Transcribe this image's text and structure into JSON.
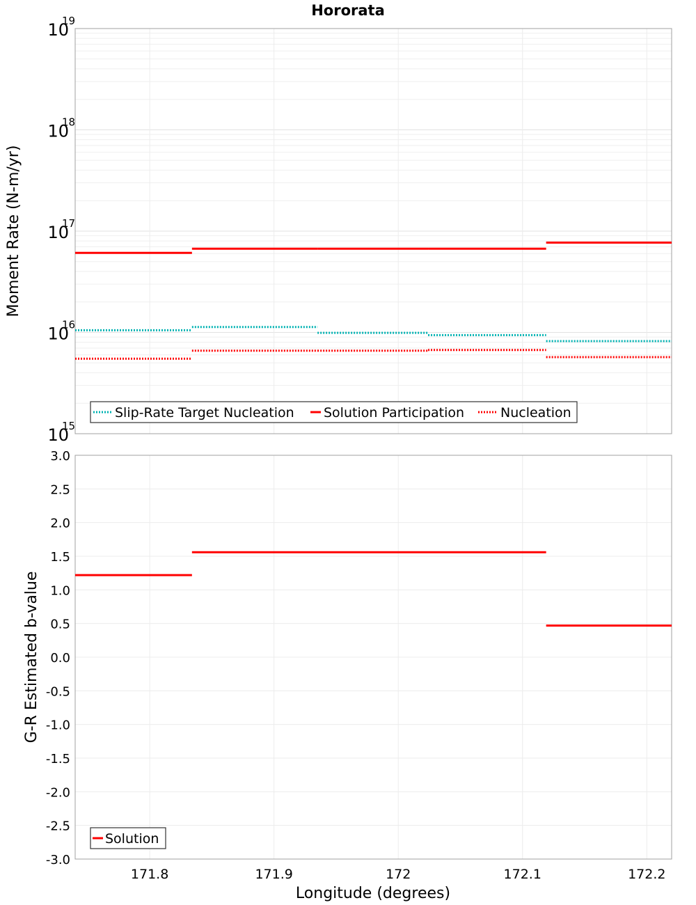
{
  "chart_data": [
    {
      "type": "line",
      "title": "Hororata",
      "xlabel": "",
      "ylabel": "Moment Rate (N-m/yr)",
      "yscale": "log",
      "xlim": [
        171.74,
        172.22
      ],
      "ylim": [
        1000000000000000.0,
        1e+19
      ],
      "y_ticks": [
        {
          "base": "10",
          "exp": "15",
          "value": 1000000000000000.0
        },
        {
          "base": "10",
          "exp": "16",
          "value": 1e+16
        },
        {
          "base": "10",
          "exp": "17",
          "value": 1e+17
        },
        {
          "base": "10",
          "exp": "18",
          "value": 1e+18
        },
        {
          "base": "10",
          "exp": "19",
          "value": 1e+19
        }
      ],
      "legend_position": "bottom-left",
      "series": [
        {
          "name": "Slip-Rate Target Nucleation",
          "color": "#00b2b2",
          "style": "dotted",
          "segments": [
            {
              "x0": 171.74,
              "x1": 171.834,
              "y": 1.05e+16
            },
            {
              "x0": 171.834,
              "x1": 171.935,
              "y": 1.13e+16
            },
            {
              "x0": 171.935,
              "x1": 172.024,
              "y": 9900000000000000.0
            },
            {
              "x0": 172.024,
              "x1": 172.119,
              "y": 9400000000000000.0
            },
            {
              "x0": 172.119,
              "x1": 172.22,
              "y": 8200000000000000.0
            }
          ]
        },
        {
          "name": "Solution Participation",
          "color": "#ff0000",
          "style": "solid",
          "segments": [
            {
              "x0": 171.74,
              "x1": 171.834,
              "y": 6.1e+16
            },
            {
              "x0": 171.834,
              "x1": 171.935,
              "y": 6.7e+16
            },
            {
              "x0": 171.935,
              "x1": 172.024,
              "y": 6.7e+16
            },
            {
              "x0": 172.024,
              "x1": 172.119,
              "y": 6.7e+16
            },
            {
              "x0": 172.119,
              "x1": 172.22,
              "y": 7.7e+16
            }
          ]
        },
        {
          "name": "Nucleation",
          "color": "#ff0000",
          "style": "dotted",
          "segments": [
            {
              "x0": 171.74,
              "x1": 171.834,
              "y": 5500000000000000.0
            },
            {
              "x0": 171.834,
              "x1": 171.935,
              "y": 6600000000000000.0
            },
            {
              "x0": 171.935,
              "x1": 172.024,
              "y": 6600000000000000.0
            },
            {
              "x0": 172.024,
              "x1": 172.119,
              "y": 6700000000000000.0
            },
            {
              "x0": 172.119,
              "x1": 172.22,
              "y": 5700000000000000.0
            }
          ]
        }
      ]
    },
    {
      "type": "line",
      "title": "",
      "xlabel": "Longitude (degrees)",
      "ylabel": "G-R Estimated b-value",
      "yscale": "linear",
      "xlim": [
        171.74,
        172.22
      ],
      "ylim": [
        -3.0,
        3.0
      ],
      "x_ticks": [
        {
          "label": "171.8",
          "value": 171.8
        },
        {
          "label": "171.9",
          "value": 171.9
        },
        {
          "label": "172",
          "value": 172.0
        },
        {
          "label": "172.1",
          "value": 172.1
        },
        {
          "label": "172.2",
          "value": 172.2
        }
      ],
      "y_ticks": [
        {
          "label": "3.0",
          "value": 3.0
        },
        {
          "label": "2.5",
          "value": 2.5
        },
        {
          "label": "2.0",
          "value": 2.0
        },
        {
          "label": "1.5",
          "value": 1.5
        },
        {
          "label": "1.0",
          "value": 1.0
        },
        {
          "label": "0.5",
          "value": 0.5
        },
        {
          "label": "0.0",
          "value": 0.0
        },
        {
          "label": "-0.5",
          "value": -0.5
        },
        {
          "label": "-1.0",
          "value": -1.0
        },
        {
          "label": "-1.5",
          "value": -1.5
        },
        {
          "label": "-2.0",
          "value": -2.0
        },
        {
          "label": "-2.5",
          "value": -2.5
        },
        {
          "label": "-3.0",
          "value": -3.0
        }
      ],
      "legend_position": "bottom-left",
      "series": [
        {
          "name": "Solution",
          "color": "#ff0000",
          "style": "solid",
          "segments": [
            {
              "x0": 171.74,
              "x1": 171.834,
              "y": 1.22
            },
            {
              "x0": 171.834,
              "x1": 172.119,
              "y": 1.56
            },
            {
              "x0": 172.119,
              "x1": 172.22,
              "y": 0.47
            }
          ]
        }
      ]
    }
  ]
}
